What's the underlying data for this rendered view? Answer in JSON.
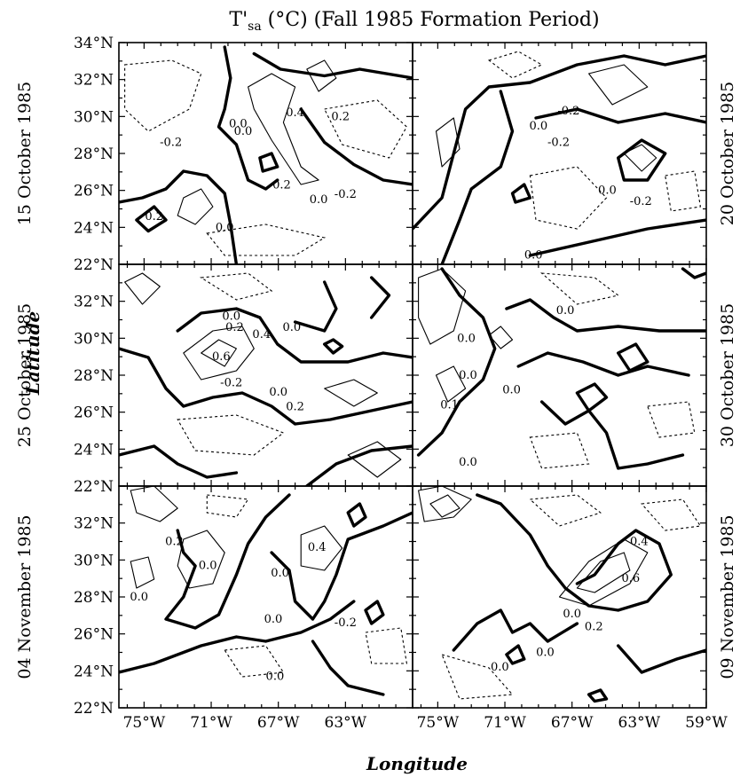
{
  "chart_data": {
    "type": "contour",
    "title": {
      "main": "T'",
      "subscript": "sa",
      "rest": " (°C) (Fall 1985 Formation Period)"
    },
    "xlabel": "Longitude",
    "ylabel": "Latitude",
    "x_ticks": [
      "75°W",
      "71°W",
      "67°W",
      "63°W",
      "59°W"
    ],
    "y_ticks": [
      "22°N",
      "24°N",
      "26°N",
      "28°N",
      "30°N",
      "32°N",
      "34°N"
    ],
    "xlim": [
      -76.5,
      -59
    ],
    "ylim": [
      22,
      34
    ],
    "panels": [
      {
        "date": "15 October 1985",
        "col": 0,
        "row": 0,
        "labels": [
          {
            "text": "0.4",
            "lon": -66.0,
            "lat": 30.2
          },
          {
            "text": "0.2",
            "lon": -63.3,
            "lat": 30.0
          },
          {
            "text": "0.0",
            "lon": -69.4,
            "lat": 29.6
          },
          {
            "text": "0.0",
            "lon": -69.1,
            "lat": 29.2
          },
          {
            "text": "-0.2",
            "lon": -73.4,
            "lat": 28.6
          },
          {
            "text": "0.2",
            "lon": -66.8,
            "lat": 26.3
          },
          {
            "text": "0.0",
            "lon": -64.6,
            "lat": 25.5
          },
          {
            "text": "-0.2",
            "lon": -63.0,
            "lat": 25.8
          },
          {
            "text": "0.2",
            "lon": -74.4,
            "lat": 24.6
          },
          {
            "text": "0.0",
            "lon": -70.2,
            "lat": 24.0
          }
        ]
      },
      {
        "date": "20 October 1985",
        "col": 1,
        "row": 0,
        "labels": [
          {
            "text": "0.0",
            "lon": -69.0,
            "lat": 29.5
          },
          {
            "text": "-0.2",
            "lon": -67.2,
            "lat": 30.3
          },
          {
            "text": "-0.2",
            "lon": -67.8,
            "lat": 28.6
          },
          {
            "text": "0.0",
            "lon": -64.9,
            "lat": 26.0
          },
          {
            "text": "-0.2",
            "lon": -62.9,
            "lat": 25.4
          },
          {
            "text": "0.0",
            "lon": -69.3,
            "lat": 22.5
          }
        ]
      },
      {
        "date": "25 October 1985",
        "col": 0,
        "row": 1,
        "labels": [
          {
            "text": "0.0",
            "lon": -69.8,
            "lat": 31.2
          },
          {
            "text": "0.2",
            "lon": -69.6,
            "lat": 30.6
          },
          {
            "text": "0.4",
            "lon": -68.0,
            "lat": 30.2
          },
          {
            "text": "0.6",
            "lon": -70.4,
            "lat": 29.0
          },
          {
            "text": "-0.2",
            "lon": -69.8,
            "lat": 27.6
          },
          {
            "text": "0.0",
            "lon": -67.0,
            "lat": 27.1
          },
          {
            "text": "0.2",
            "lon": -66.0,
            "lat": 26.3
          },
          {
            "text": "0.0",
            "lon": -66.2,
            "lat": 30.6
          }
        ]
      },
      {
        "date": "30 October 1985",
        "col": 1,
        "row": 1,
        "labels": [
          {
            "text": "0.0",
            "lon": -67.4,
            "lat": 31.5
          },
          {
            "text": "0.0",
            "lon": -73.3,
            "lat": 30.0
          },
          {
            "text": "0.0",
            "lon": -73.2,
            "lat": 28.0
          },
          {
            "text": "0.1",
            "lon": -74.3,
            "lat": 26.4
          },
          {
            "text": "0.0",
            "lon": -70.6,
            "lat": 27.2
          },
          {
            "text": "0.0",
            "lon": -73.2,
            "lat": 23.3
          }
        ]
      },
      {
        "date": "04 November 1985",
        "col": 0,
        "row": 2,
        "labels": [
          {
            "text": "0.2",
            "lon": -73.2,
            "lat": 31.0
          },
          {
            "text": "0.0",
            "lon": -71.2,
            "lat": 29.7
          },
          {
            "text": "0.4",
            "lon": -64.7,
            "lat": 30.7
          },
          {
            "text": "0.0",
            "lon": -66.9,
            "lat": 29.3
          },
          {
            "text": "0.0",
            "lon": -75.3,
            "lat": 28.0
          },
          {
            "text": "0.0",
            "lon": -67.3,
            "lat": 26.8
          },
          {
            "text": "-0.2",
            "lon": -63.0,
            "lat": 26.6
          },
          {
            "text": "0.0",
            "lon": -67.2,
            "lat": 23.7
          }
        ]
      },
      {
        "date": "09 November 1985",
        "col": 1,
        "row": 2,
        "labels": [
          {
            "text": "0.4",
            "lon": -63.0,
            "lat": 31.0
          },
          {
            "text": "0.6",
            "lon": -63.5,
            "lat": 29.0
          },
          {
            "text": "0.0",
            "lon": -67.0,
            "lat": 27.1
          },
          {
            "text": "0.2",
            "lon": -65.7,
            "lat": 26.4
          },
          {
            "text": "0.0",
            "lon": -68.6,
            "lat": 25.0
          },
          {
            "text": "0.0",
            "lon": -71.3,
            "lat": 24.2
          }
        ]
      }
    ]
  }
}
